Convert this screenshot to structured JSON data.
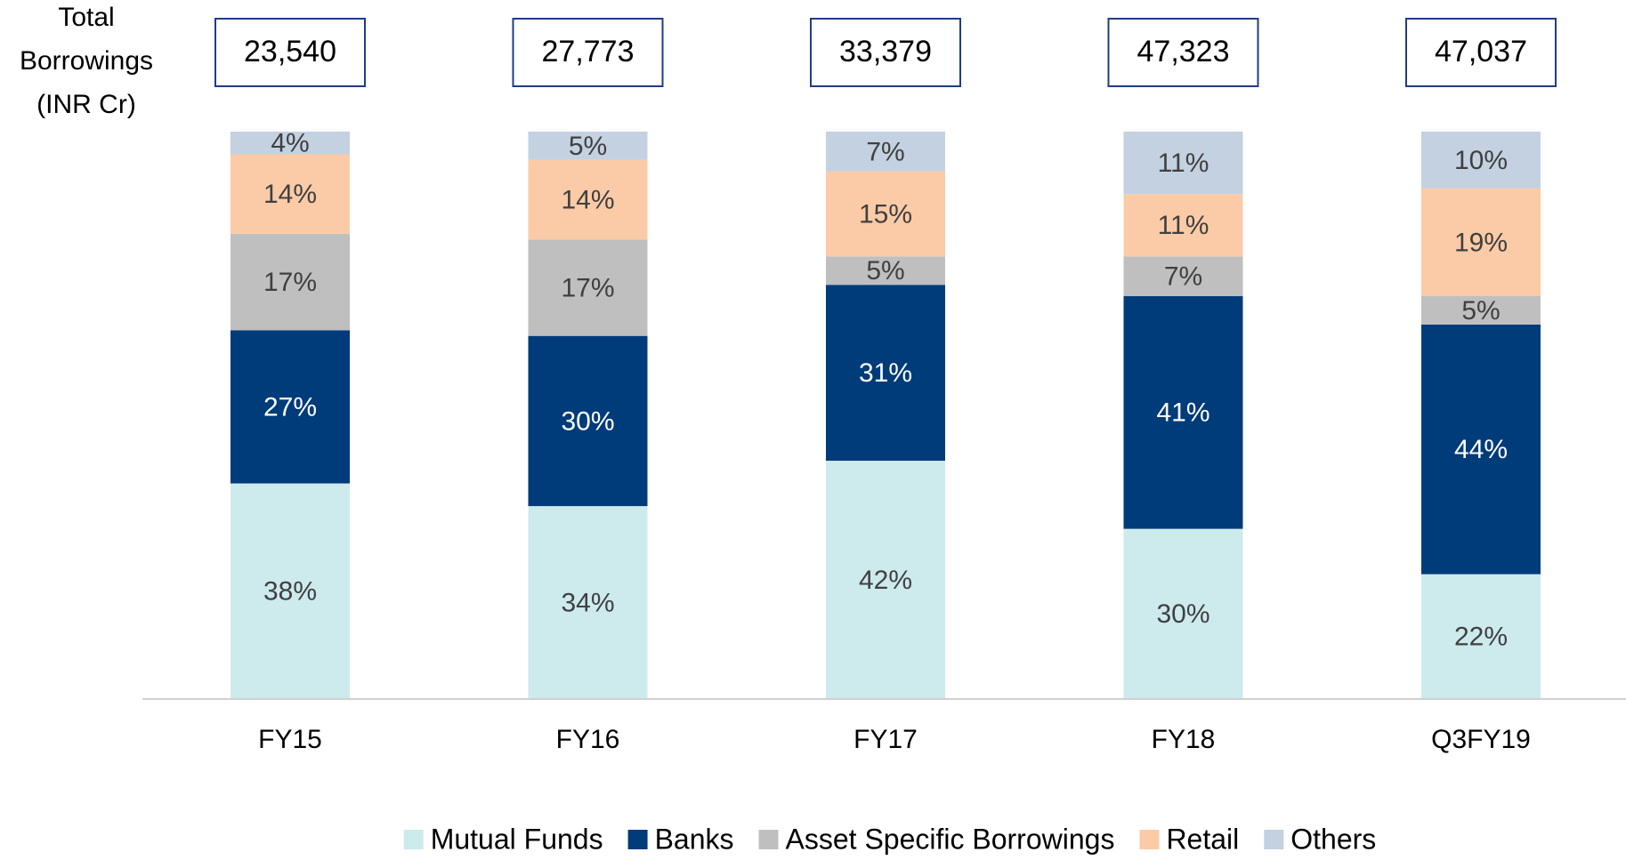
{
  "chart_data": {
    "type": "stacked_bar",
    "title_lines": [
      "Total",
      "Borrowings",
      "(INR Cr)"
    ],
    "categories": [
      "FY15",
      "FY16",
      "FY17",
      "FY18",
      "Q3FY19"
    ],
    "totals": [
      {
        "value": 23540,
        "label": "23,540"
      },
      {
        "value": 27773,
        "label": "27,773"
      },
      {
        "value": 33379,
        "label": "33,379"
      },
      {
        "value": 47323,
        "label": "47,323"
      },
      {
        "value": 47037,
        "label": "47,037"
      }
    ],
    "ylim": [
      0,
      100
    ],
    "series": [
      {
        "name": "Mutual Funds",
        "color": "#cdeaed",
        "label_color": "#404040",
        "values": [
          38,
          34,
          42,
          30,
          22
        ],
        "value_labels": [
          "38%",
          "34%",
          "42%",
          "30%",
          "22%"
        ]
      },
      {
        "name": "Banks",
        "color": "#003b7a",
        "label_color": "#ffffff",
        "values": [
          27,
          30,
          31,
          41,
          44
        ],
        "value_labels": [
          "27%",
          "30%",
          "31%",
          "41%",
          "44%"
        ]
      },
      {
        "name": "Asset Specific Borrowings",
        "color": "#bfbfbf",
        "label_color": "#404040",
        "values": [
          17,
          17,
          5,
          7,
          5
        ],
        "value_labels": [
          "17%",
          "17%",
          "5%",
          "7%",
          "5%"
        ]
      },
      {
        "name": "Retail",
        "color": "#fbcba7",
        "label_color": "#404040",
        "values": [
          14,
          14,
          15,
          11,
          19
        ],
        "value_labels": [
          "14%",
          "14%",
          "15%",
          "11%",
          "19%"
        ]
      },
      {
        "name": "Others",
        "color": "#c3d1e1",
        "label_color": "#404040",
        "values": [
          4,
          5,
          7,
          11,
          10
        ],
        "value_labels": [
          "4%",
          "5%",
          "7%",
          "11%",
          "10%"
        ]
      }
    ]
  }
}
